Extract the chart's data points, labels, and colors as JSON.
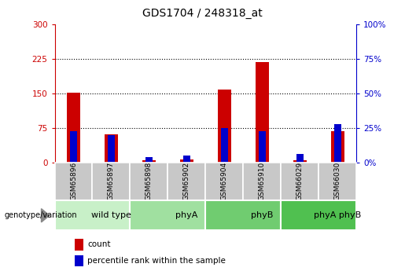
{
  "title": "GDS1704 / 248318_at",
  "samples": [
    "GSM65896",
    "GSM65897",
    "GSM65898",
    "GSM65902",
    "GSM65904",
    "GSM65910",
    "GSM66029",
    "GSM66030"
  ],
  "counts": [
    152,
    62,
    5,
    6,
    158,
    218,
    5,
    68
  ],
  "percentile_ranks": [
    23,
    20,
    4,
    5,
    25,
    23,
    6,
    28
  ],
  "groups": [
    {
      "label": "wild type",
      "start": 0,
      "end": 2,
      "color": "#c8f0c8"
    },
    {
      "label": "phyA",
      "start": 2,
      "end": 4,
      "color": "#a0e0a0"
    },
    {
      "label": "phyB",
      "start": 4,
      "end": 6,
      "color": "#70cc70"
    },
    {
      "label": "phyA phyB",
      "start": 6,
      "end": 8,
      "color": "#50c050"
    }
  ],
  "left_ticks": [
    0,
    75,
    150,
    225,
    300
  ],
  "right_ticks": [
    0,
    25,
    50,
    75,
    100
  ],
  "ylim_left": [
    0,
    300
  ],
  "ylim_right": [
    0,
    100
  ],
  "red_color": "#cc0000",
  "blue_color": "#0000cc",
  "sample_bg": "#c8c8c8",
  "genotype_label": "genotype/variation",
  "legend_count": "count",
  "legend_pct": "percentile rank within the sample"
}
